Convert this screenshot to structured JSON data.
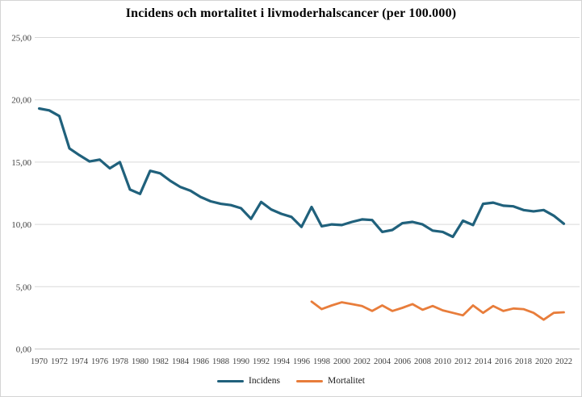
{
  "title": "Incidens och mortalitet i livmoderhalscancer (per 100.000)",
  "legend": {
    "items": [
      {
        "label": "Incidens",
        "color": "#20617C"
      },
      {
        "label": "Mortalitet",
        "color": "#E87D3B"
      }
    ]
  },
  "chart_data": {
    "type": "line",
    "title": "Incidens och mortalitet i livmoderhalscancer (per 100.000)",
    "xlabel": "",
    "ylabel": "",
    "ylim": [
      0,
      25
    ],
    "grid": "horizontal",
    "legend_position": "bottom",
    "y_axis": {
      "tick_values": [
        25,
        20,
        15,
        10,
        5,
        0
      ],
      "tick_labels": [
        "25,00",
        "20,00",
        "15,00",
        "10,00",
        "5,00",
        "0,00"
      ]
    },
    "x_axis": {
      "tick_years": [
        1970,
        1972,
        1974,
        1976,
        1978,
        1980,
        1982,
        1984,
        1986,
        1988,
        1990,
        1992,
        1994,
        1996,
        1998,
        2000,
        2002,
        2004,
        2006,
        2008,
        2010,
        2012,
        2014,
        2016,
        2018,
        2020,
        2022
      ]
    },
    "series": [
      {
        "name": "Incidens",
        "color": "#20617C",
        "start_year": 1970,
        "values": [
          19.3,
          19.15,
          18.7,
          16.1,
          15.55,
          15.05,
          15.2,
          14.5,
          15.0,
          12.8,
          12.45,
          14.3,
          14.1,
          13.5,
          13.0,
          12.7,
          12.2,
          11.85,
          11.65,
          11.55,
          11.3,
          10.45,
          11.8,
          11.2,
          10.85,
          10.6,
          9.8,
          11.4,
          9.85,
          10.0,
          9.95,
          10.2,
          10.4,
          10.35,
          9.4,
          9.55,
          10.1,
          10.2,
          10.0,
          9.5,
          9.4,
          9.0,
          10.3,
          9.95,
          11.65,
          11.75,
          11.5,
          11.45,
          11.15,
          11.05,
          11.15,
          10.7,
          10.05
        ]
      },
      {
        "name": "Mortalitet",
        "color": "#E87D3B",
        "start_year": 1997,
        "values": [
          3.8,
          3.2,
          3.5,
          3.75,
          3.6,
          3.45,
          3.05,
          3.5,
          3.05,
          3.3,
          3.6,
          3.15,
          3.45,
          3.1,
          2.9,
          2.7,
          3.5,
          2.9,
          3.45,
          3.05,
          3.25,
          3.2,
          2.9,
          2.35,
          2.9,
          2.95
        ]
      }
    ]
  },
  "colors": {
    "gridline": "#d9d9d9",
    "axis_line": "#c9c9c9",
    "tick_text": "#3f3f3f",
    "background": "#ffffff",
    "border": "#d4d4d4"
  }
}
